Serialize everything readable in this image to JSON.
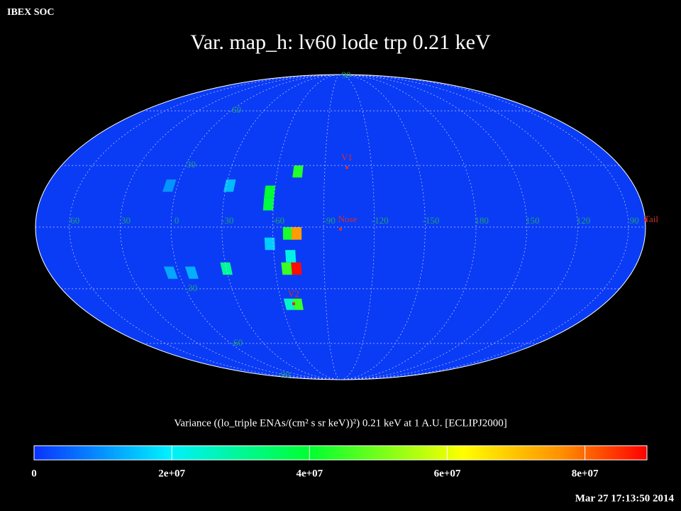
{
  "header": "IBEX SOC",
  "timestamp": "Mar 27 17:13:50 2014",
  "chart_data": {
    "type": "mollweide_map",
    "title": "Var. map_h: lv60 lode trp 0.21 keV",
    "grid": true,
    "lon_ticks": [
      60,
      30,
      0,
      -30,
      -60,
      -90,
      -120,
      -150,
      180,
      150,
      120,
      90
    ],
    "lat_ticks": [
      90,
      60,
      30,
      -30,
      -60,
      -90
    ],
    "markers": [
      {
        "label": "V1"
      },
      {
        "label": "Nose"
      },
      {
        "label": "V2"
      },
      {
        "label": "Tail"
      }
    ],
    "cells": {
      "lon": [
        -73,
        -57,
        -57,
        -69,
        -74,
        -67,
        -73,
        -30,
        -71,
        -65,
        -70,
        -58,
        -32,
        5,
        5,
        -8
      ],
      "lat": [
        27,
        17,
        11,
        -3,
        -3,
        -20,
        -20,
        -20,
        -38,
        -38,
        -14,
        -8,
        20,
        20,
        -22,
        -22
      ],
      "values": [
        43000000,
        40000000,
        38000000,
        42000000,
        75000000,
        45000000,
        88000000,
        30000000,
        45000000,
        25000000,
        22000000,
        16000000,
        14000000,
        10000000,
        12000000,
        13000000
      ]
    },
    "colorbar": {
      "label": "Variance ((lo_triple ENAs/(cm² s sr keV))²) 0.21 keV at 1 A.U. [ECLIPJ2000]",
      "lim": [
        0,
        89000000
      ],
      "ticks": [
        0,
        {
          "value": 20000000,
          "label": "2e+07"
        },
        {
          "value": 40000000,
          "label": "4e+07"
        },
        {
          "value": 60000000,
          "label": "6e+07"
        },
        {
          "value": 80000000,
          "label": "8e+07"
        }
      ]
    }
  }
}
